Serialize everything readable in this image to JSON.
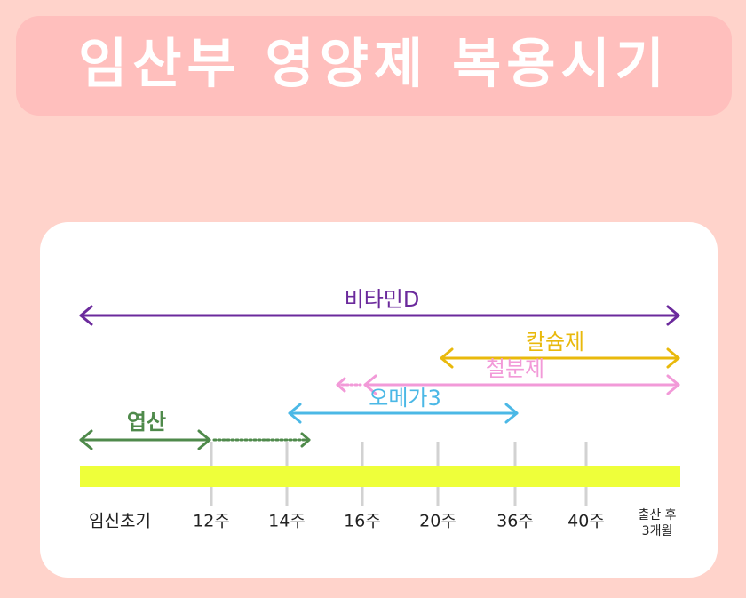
{
  "title": "임산부 영양제 복용시기",
  "supplements": [
    "비타민D",
    "칼슘제",
    "철분제",
    "오메가3",
    "엽산"
  ],
  "timeline": [
    "임신초기",
    "12주",
    "14주",
    "16주",
    "20주",
    "36주",
    "40주"
  ],
  "timeline_end": [
    "출산 후",
    "3개월"
  ]
}
